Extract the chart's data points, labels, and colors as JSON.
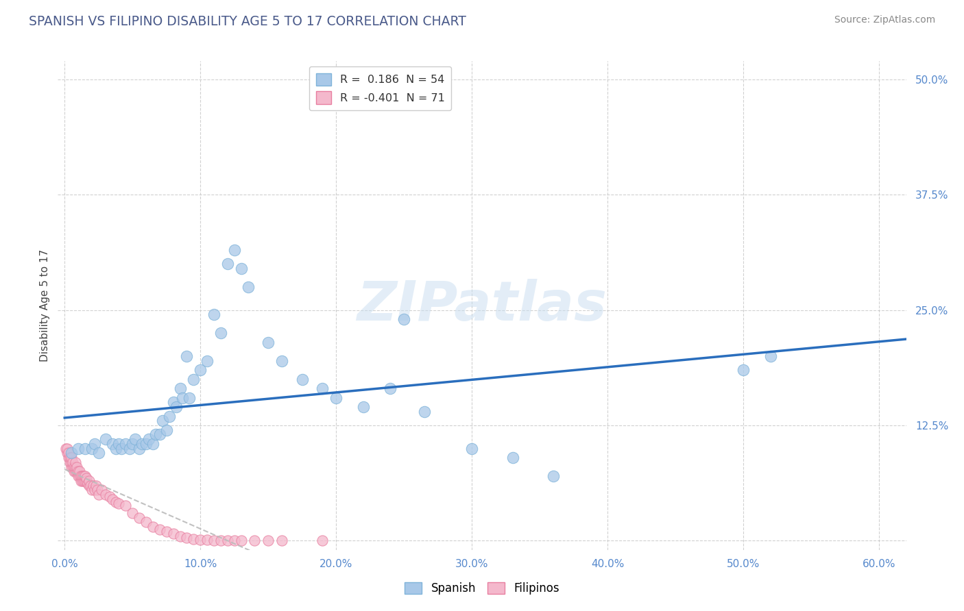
{
  "title": "SPANISH VS FILIPINO DISABILITY AGE 5 TO 17 CORRELATION CHART",
  "source": "Source: ZipAtlas.com",
  "ylabel": "Disability Age 5 to 17",
  "xlim": [
    -0.005,
    0.62
  ],
  "ylim": [
    -0.01,
    0.52
  ],
  "xticks": [
    0.0,
    0.1,
    0.2,
    0.3,
    0.4,
    0.5,
    0.6
  ],
  "yticks": [
    0.0,
    0.125,
    0.25,
    0.375,
    0.5
  ],
  "xtick_labels": [
    "0.0%",
    "10.0%",
    "20.0%",
    "30.0%",
    "40.0%",
    "50.0%",
    "60.0%"
  ],
  "ytick_labels": [
    "",
    "12.5%",
    "25.0%",
    "37.5%",
    "50.0%"
  ],
  "legend_r1": "R =  0.186  N = 54",
  "legend_r2": "R = -0.401  N = 71",
  "spanish_marker_color": "#a8c8e8",
  "spanish_edge_color": "#7fb3d9",
  "filipino_marker_color": "#f4b8cc",
  "filipino_edge_color": "#e87fa0",
  "spanish_line_color": "#2a6ebd",
  "filipino_line_color": "#cccccc",
  "watermark_color": "#c8ddf0",
  "title_color": "#4a5a8a",
  "tick_color": "#5588cc",
  "source_color": "#888888",
  "grid_color": "#cccccc",
  "background": "#ffffff",
  "spanish_x": [
    0.005,
    0.01,
    0.015,
    0.02,
    0.022,
    0.025,
    0.03,
    0.035,
    0.038,
    0.04,
    0.042,
    0.045,
    0.048,
    0.05,
    0.052,
    0.055,
    0.057,
    0.06,
    0.062,
    0.065,
    0.067,
    0.07,
    0.072,
    0.075,
    0.077,
    0.08,
    0.082,
    0.085,
    0.087,
    0.09,
    0.092,
    0.095,
    0.1,
    0.105,
    0.11,
    0.115,
    0.12,
    0.125,
    0.13,
    0.135,
    0.15,
    0.16,
    0.175,
    0.19,
    0.2,
    0.22,
    0.24,
    0.25,
    0.265,
    0.3,
    0.33,
    0.36,
    0.5,
    0.52
  ],
  "spanish_y": [
    0.095,
    0.1,
    0.1,
    0.1,
    0.105,
    0.095,
    0.11,
    0.105,
    0.1,
    0.105,
    0.1,
    0.105,
    0.1,
    0.105,
    0.11,
    0.1,
    0.105,
    0.105,
    0.11,
    0.105,
    0.115,
    0.115,
    0.13,
    0.12,
    0.135,
    0.15,
    0.145,
    0.165,
    0.155,
    0.2,
    0.155,
    0.175,
    0.185,
    0.195,
    0.245,
    0.225,
    0.3,
    0.315,
    0.295,
    0.275,
    0.215,
    0.195,
    0.175,
    0.165,
    0.155,
    0.145,
    0.165,
    0.24,
    0.14,
    0.1,
    0.09,
    0.07,
    0.185,
    0.2
  ],
  "filipino_x": [
    0.001,
    0.002,
    0.002,
    0.003,
    0.003,
    0.004,
    0.004,
    0.005,
    0.005,
    0.005,
    0.006,
    0.006,
    0.007,
    0.007,
    0.008,
    0.008,
    0.008,
    0.009,
    0.009,
    0.01,
    0.01,
    0.011,
    0.011,
    0.012,
    0.012,
    0.013,
    0.013,
    0.014,
    0.014,
    0.015,
    0.015,
    0.016,
    0.016,
    0.017,
    0.018,
    0.018,
    0.019,
    0.02,
    0.021,
    0.022,
    0.023,
    0.024,
    0.025,
    0.027,
    0.03,
    0.033,
    0.035,
    0.038,
    0.04,
    0.045,
    0.05,
    0.055,
    0.06,
    0.065,
    0.07,
    0.075,
    0.08,
    0.085,
    0.09,
    0.095,
    0.1,
    0.105,
    0.11,
    0.115,
    0.12,
    0.125,
    0.13,
    0.14,
    0.15,
    0.16,
    0.19
  ],
  "filipino_y": [
    0.1,
    0.095,
    0.1,
    0.09,
    0.095,
    0.085,
    0.09,
    0.08,
    0.085,
    0.09,
    0.08,
    0.085,
    0.075,
    0.08,
    0.075,
    0.08,
    0.085,
    0.075,
    0.08,
    0.07,
    0.075,
    0.07,
    0.075,
    0.065,
    0.07,
    0.065,
    0.07,
    0.065,
    0.07,
    0.065,
    0.07,
    0.065,
    0.068,
    0.062,
    0.06,
    0.065,
    0.06,
    0.055,
    0.06,
    0.055,
    0.06,
    0.055,
    0.05,
    0.055,
    0.05,
    0.048,
    0.045,
    0.042,
    0.04,
    0.038,
    0.03,
    0.025,
    0.02,
    0.015,
    0.012,
    0.01,
    0.008,
    0.005,
    0.003,
    0.002,
    0.001,
    0.001,
    0.0,
    0.0,
    0.0,
    0.0,
    0.0,
    0.0,
    0.0,
    0.0,
    0.0
  ]
}
